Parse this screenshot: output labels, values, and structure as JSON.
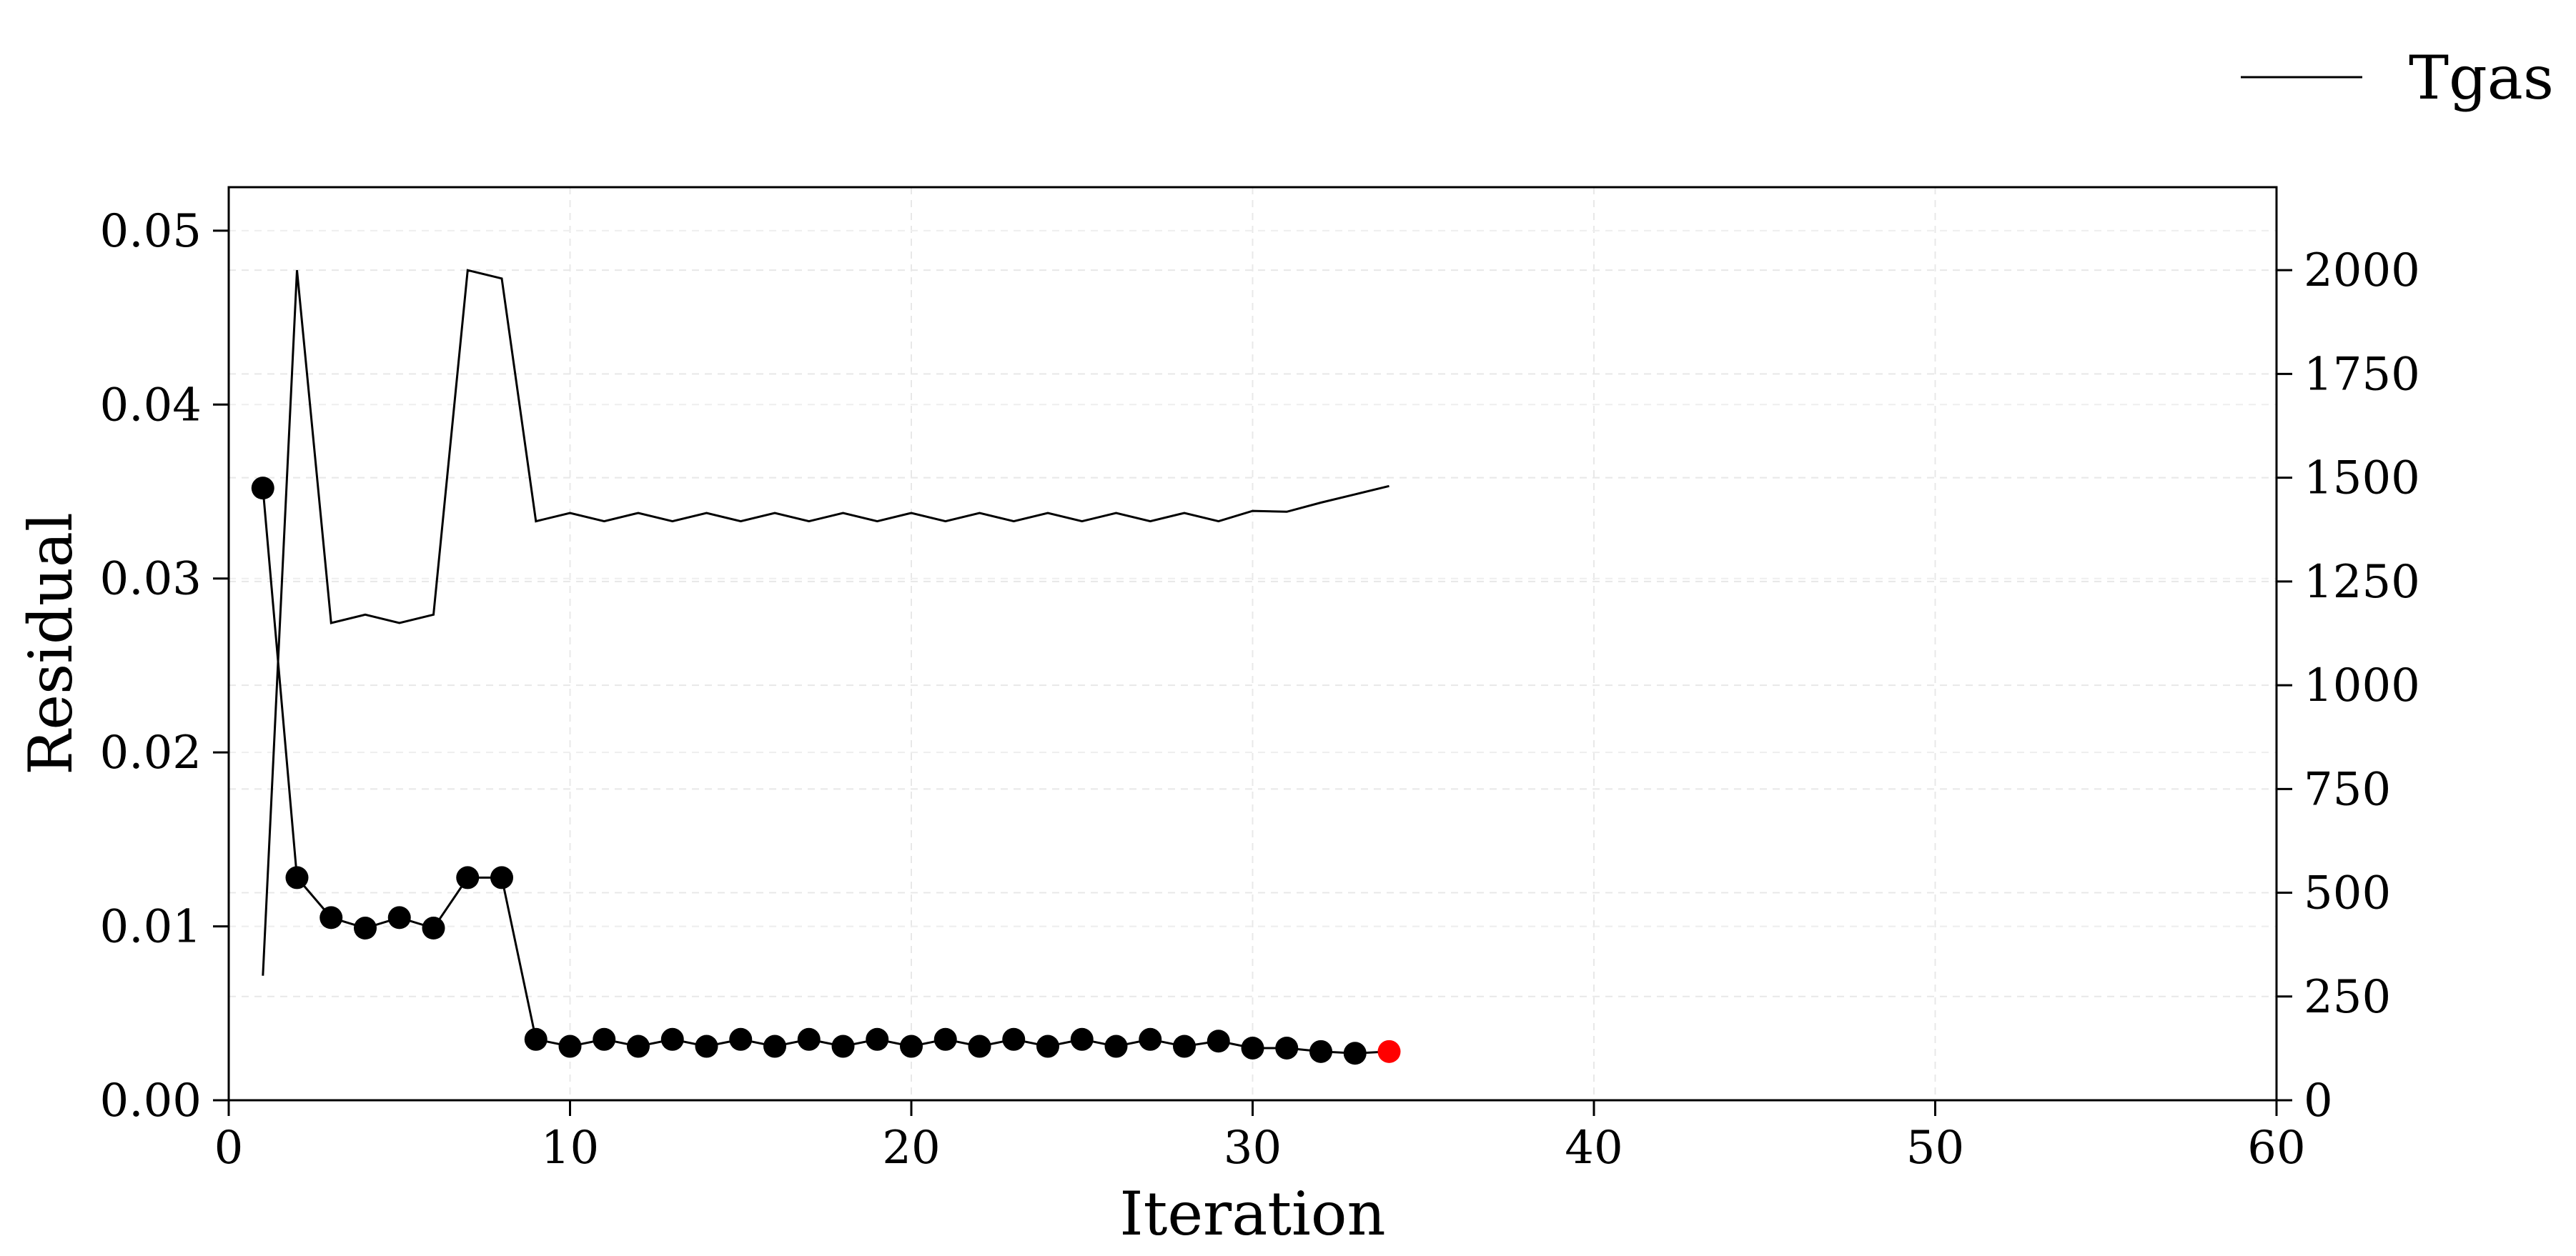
{
  "chart_data": {
    "type": "line",
    "title": "",
    "xlabel": "Iteration",
    "ylabel": "Residual",
    "y2label": "",
    "xlim": [
      0,
      60
    ],
    "ylim": [
      0,
      0.0525
    ],
    "y2lim": [
      0,
      2200
    ],
    "xticks": [
      0,
      10,
      20,
      30,
      40,
      50,
      60
    ],
    "xtick_labels": [
      "0",
      "10",
      "20",
      "30",
      "40",
      "50",
      "60"
    ],
    "yticks": [
      0,
      0.01,
      0.02,
      0.03,
      0.04,
      0.05
    ],
    "ytick_labels": [
      "0.00",
      "0.01",
      "0.02",
      "0.03",
      "0.04",
      "0.05"
    ],
    "y2ticks": [
      0,
      250,
      500,
      750,
      1000,
      1250,
      1500,
      1750,
      2000
    ],
    "y2tick_labels": [
      "0",
      "250",
      "500",
      "750",
      "1000",
      "1250",
      "1500",
      "1750",
      "2000"
    ],
    "grid": true,
    "legend_position": "top-right, outside plot",
    "colors": {
      "residual": "#000000",
      "last_point": "#ff0000",
      "tgas": "#000000"
    },
    "series": [
      {
        "axis": "left",
        "style": "line-with-markers",
        "x": [
          1,
          2,
          3,
          4,
          5,
          6,
          7,
          8,
          9,
          10,
          11,
          12,
          13,
          14,
          15,
          16,
          17,
          18,
          19,
          20,
          21,
          22,
          23,
          24,
          25,
          26,
          27,
          28,
          29,
          30,
          31,
          32,
          33,
          34
        ],
        "values": [
          0.0352,
          0.0128,
          0.0105,
          0.0099,
          0.0105,
          0.0099,
          0.0128,
          0.0128,
          0.0035,
          0.0031,
          0.0035,
          0.0031,
          0.0035,
          0.0031,
          0.0035,
          0.0031,
          0.0035,
          0.0031,
          0.0035,
          0.0031,
          0.0035,
          0.0031,
          0.0035,
          0.0031,
          0.0035,
          0.0031,
          0.0035,
          0.0031,
          0.0034,
          0.003,
          0.003,
          0.0028,
          0.0027,
          0.0028
        ],
        "highlight_last": true
      },
      {
        "name": "Tgas",
        "axis": "right",
        "style": "line",
        "x": [
          1,
          2,
          3,
          4,
          5,
          6,
          7,
          8,
          9,
          10,
          11,
          12,
          13,
          14,
          15,
          16,
          17,
          18,
          19,
          20,
          21,
          22,
          23,
          24,
          25,
          26,
          27,
          28,
          29,
          30,
          31,
          32,
          33,
          34
        ],
        "values": [
          300,
          2000,
          1150,
          1170,
          1150,
          1170,
          2000,
          1980,
          1395,
          1415,
          1395,
          1415,
          1395,
          1415,
          1395,
          1415,
          1395,
          1415,
          1395,
          1415,
          1395,
          1415,
          1395,
          1415,
          1395,
          1415,
          1395,
          1415,
          1395,
          1420,
          1418,
          1440,
          1460,
          1480
        ]
      }
    ]
  }
}
